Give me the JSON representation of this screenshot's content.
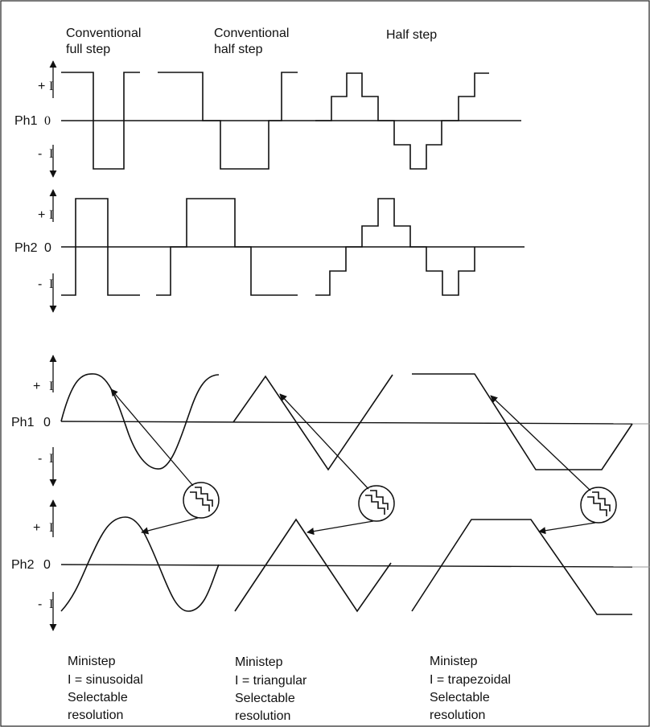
{
  "headers": {
    "conventional_full_step": [
      "Conventional",
      "full step"
    ],
    "conventional_half_step": [
      "Conventional",
      "half step"
    ],
    "half_step": [
      "Half step"
    ]
  },
  "phases": {
    "ph1": "Ph1",
    "ph2": "Ph2"
  },
  "scale": {
    "plus": "+",
    "minus": "-",
    "zero_lower": "0",
    "zero_upper": "0",
    "current": "I"
  },
  "captions": {
    "sinusoidal": [
      "Ministep",
      "I = sinusoidal",
      "Selectable",
      "resolution"
    ],
    "triangular": [
      "Ministep",
      "I = triangular",
      "Selectable",
      "resolution"
    ],
    "trapezoidal": [
      "Ministep",
      "I = trapezoidal",
      "Selectable",
      "resolution"
    ]
  },
  "colors": {
    "ink": "#111111",
    "frame": "#222222",
    "faint_axis": "#999999"
  }
}
